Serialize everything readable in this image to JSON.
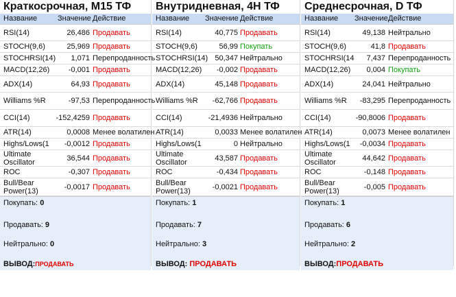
{
  "panels": [
    {
      "title": "Краткосрочная, M15 ТФ",
      "header": {
        "name": "Название",
        "value": "Значение",
        "action": "Действие"
      },
      "rows": [
        {
          "name": "RSI(14)",
          "value": "26,486",
          "action": "Продавать",
          "type": "sell"
        },
        {
          "name": "STOCH(9,6)",
          "value": "25,969",
          "action": "Продавать",
          "type": "sell"
        },
        {
          "name": "STOCHRSI(14)",
          "value": "1,071",
          "action": "Перепроданность",
          "type": "over"
        },
        {
          "name": "MACD(12,26)",
          "value": "-0,001",
          "action": "Продавать",
          "type": "sell"
        },
        {
          "name": "ADX(14)",
          "value": "64,93",
          "action": "Продавать",
          "type": "sell"
        },
        {
          "name": "Williams %R",
          "value": "-97,53",
          "action": "Перепроданность",
          "type": "over"
        },
        {
          "name": "CCI(14)",
          "value": "-152,4259",
          "action": "Продавать",
          "type": "sell"
        },
        {
          "name": "ATR(14)",
          "value": "0,0008",
          "action": "Менее волатилен",
          "type": "less"
        },
        {
          "name": "Highs/Lows(1",
          "value": "-0,0012",
          "action": "Продавать",
          "type": "sell"
        },
        {
          "name": "Ultimate Oscillator",
          "value": "36,544",
          "action": "Продавать",
          "type": "sell"
        },
        {
          "name": "ROC",
          "value": "-0,307",
          "action": "Продавать",
          "type": "sell"
        },
        {
          "name": "Bull/Bear Power(13)",
          "value": "-0,0017",
          "action": "Продавать",
          "type": "sell"
        }
      ],
      "summary": {
        "buy_label": "Покупать:",
        "buy": "0",
        "sell_label": "Продавать:",
        "sell": "9",
        "neutral_label": "Нейтрально:",
        "neutral": "0",
        "conclusion_label": "ВЫВОД:",
        "conclusion": "ПРОДАВАТЬ"
      }
    },
    {
      "title": "Внутридневная, 4H ТФ",
      "header": {
        "name": "Название",
        "value": "Значение",
        "action": "Действие"
      },
      "rows": [
        {
          "name": "RSI(14)",
          "value": "40,775",
          "action": "Продавать",
          "type": "sell"
        },
        {
          "name": "STOCH(9,6)",
          "value": "56,99",
          "action": "Покупать",
          "type": "buy"
        },
        {
          "name": "STOCHRSI(14)",
          "value": "50,347",
          "action": "Нейтрально",
          "type": "neutral"
        },
        {
          "name": "MACD(12,26)",
          "value": "-0,002",
          "action": "Продавать",
          "type": "sell"
        },
        {
          "name": "ADX(14)",
          "value": "45,148",
          "action": "Продавать",
          "type": "sell"
        },
        {
          "name": "Williams %R",
          "value": "-62,766",
          "action": "Продавать",
          "type": "sell"
        },
        {
          "name": "CCI(14)",
          "value": "-21,4936",
          "action": "Нейтрально",
          "type": "neutral"
        },
        {
          "name": "ATR(14)",
          "value": "0,0033",
          "action": "Менее волатилен",
          "type": "less"
        },
        {
          "name": "Highs/Lows(1",
          "value": "0",
          "action": "Нейтрально",
          "type": "neutral"
        },
        {
          "name": "Ultimate Oscillator",
          "value": "43,587",
          "action": "Продавать",
          "type": "sell"
        },
        {
          "name": "ROC",
          "value": "-0,434",
          "action": "Продавать",
          "type": "sell"
        },
        {
          "name": "Bull/Bear Power(13)",
          "value": "-0,0021",
          "action": "Продавать",
          "type": "sell"
        }
      ],
      "summary": {
        "buy_label": "Покупать:",
        "buy": "1",
        "sell_label": "Продавать:",
        "sell": "7",
        "neutral_label": "Нейтрально:",
        "neutral": "3",
        "conclusion_label": "ВЫВОД:",
        "conclusion": "ПРОДАВАТЬ"
      }
    },
    {
      "title": "Среднесрочная, D ТФ",
      "header": {
        "name": "Название",
        "value": "Значение",
        "action": "Действие"
      },
      "rows": [
        {
          "name": "RSI(14)",
          "value": "49,138",
          "action": "Нейтрально",
          "type": "neutral"
        },
        {
          "name": "STOCH(9,6)",
          "value": "41,8",
          "action": "Продавать",
          "type": "sell"
        },
        {
          "name": "STOCHRSI(14",
          "value": "7,437",
          "action": "Перепроданность",
          "type": "over"
        },
        {
          "name": "MACD(12,26)",
          "value": "0,004",
          "action": "Покупать",
          "type": "buy"
        },
        {
          "name": "ADX(14)",
          "value": "24,041",
          "action": "Нейтрально",
          "type": "neutral"
        },
        {
          "name": "Williams %R",
          "value": "-83,295",
          "action": "Перепроданность",
          "type": "over"
        },
        {
          "name": "CCI(14)",
          "value": "-90,8006",
          "action": "Продавать",
          "type": "sell"
        },
        {
          "name": "ATR(14)",
          "value": "0,0073",
          "action": "Менее волатилен",
          "type": "less"
        },
        {
          "name": "Highs/Lows(1",
          "value": "-0,0034",
          "action": "Продавать",
          "type": "sell"
        },
        {
          "name": "Ultimate Oscillator",
          "value": "44,642",
          "action": "Продавать",
          "type": "sell"
        },
        {
          "name": "ROC",
          "value": "-0,148",
          "action": "Продавать",
          "type": "sell"
        },
        {
          "name": "Bull/Bear Power(13)",
          "value": "-0,005",
          "action": "Продавать",
          "type": "sell"
        }
      ],
      "summary": {
        "buy_label": "Покупать:",
        "buy": "1",
        "sell_label": "Продавать:",
        "sell": "6",
        "neutral_label": "Нейтрально:",
        "neutral": "2",
        "conclusion_label": "ВЫВОД:",
        "conclusion": "ПРОДАВАТЬ"
      }
    }
  ]
}
